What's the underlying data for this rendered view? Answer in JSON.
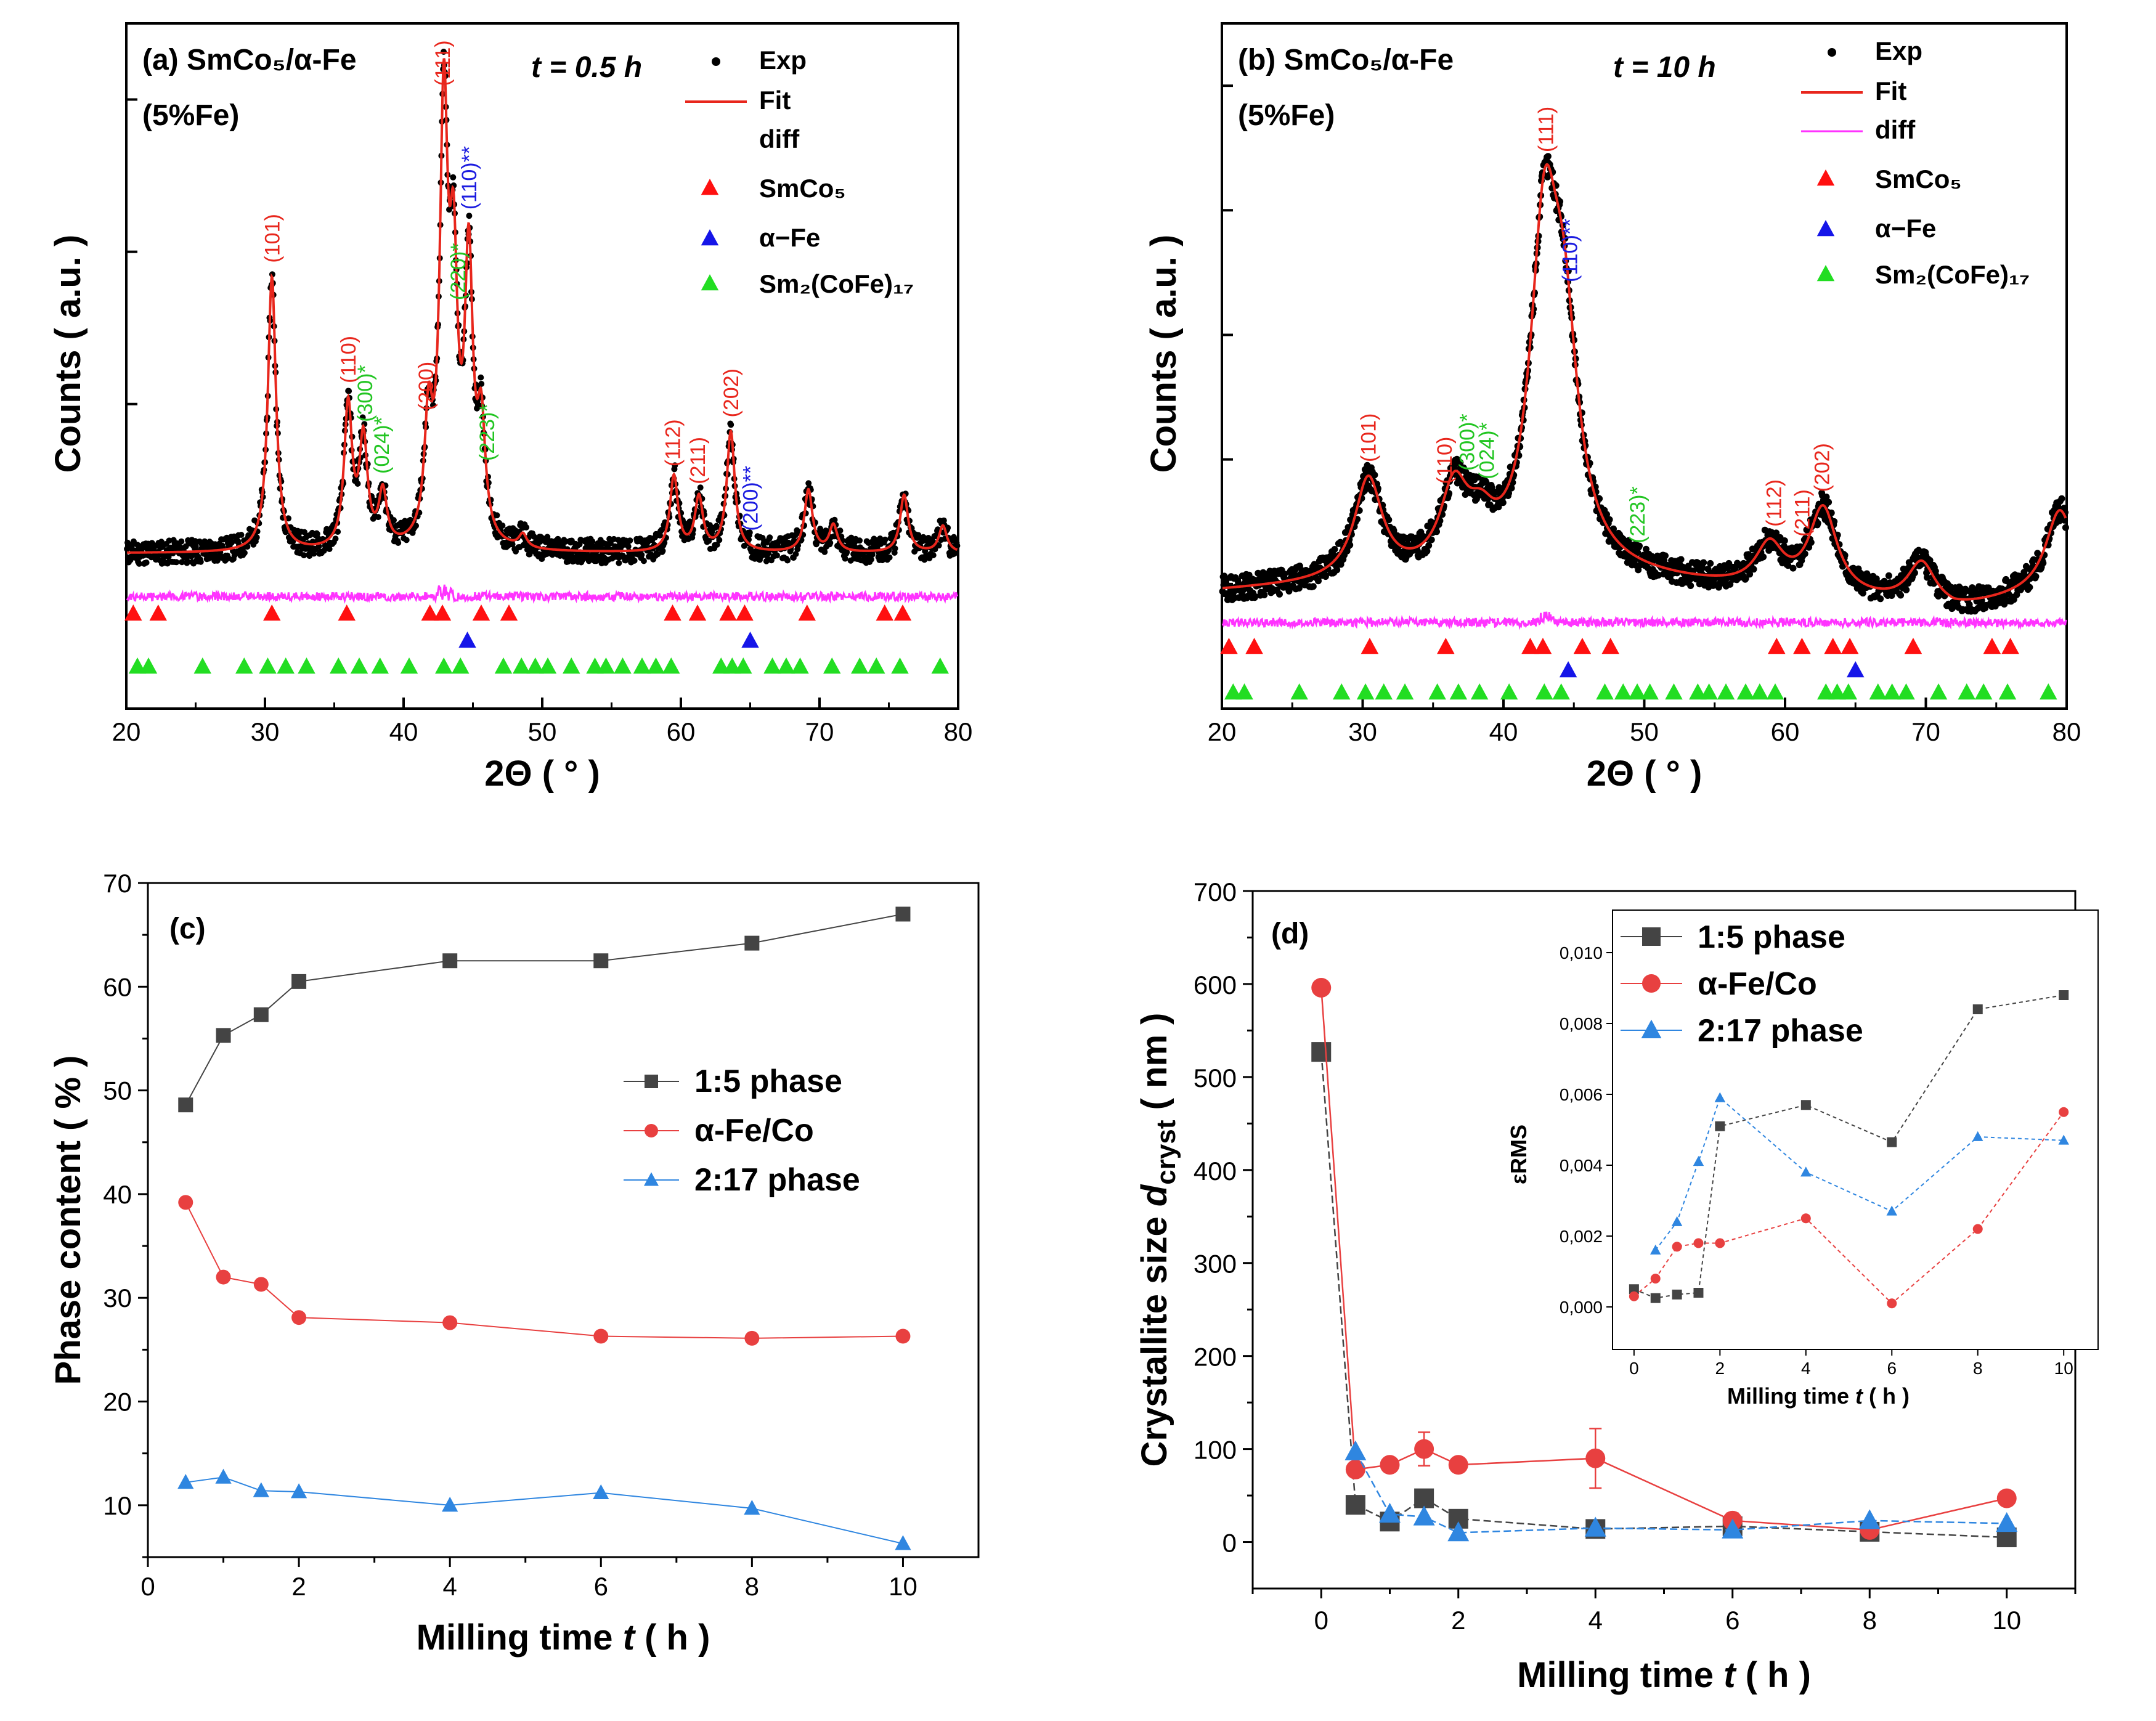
{
  "panels": {
    "a": {
      "label": "(a) SmCo₅/α-Fe",
      "sublabel": "(5%Fe)",
      "time": "t = 0.5 h",
      "xlabel": "2Θ ( ° )",
      "ylabel": "Counts ( a.u. )",
      "xticks": [
        "20",
        "30",
        "40",
        "50",
        "60",
        "70",
        "80"
      ],
      "legend": [
        "Exp",
        "Fit",
        "diff",
        "SmCo₅",
        "α−Fe",
        "Sm₂(CoFe)₁₇"
      ],
      "peaks": [
        {
          "x": 30.5,
          "text": "(101)",
          "color": "#e8261c"
        },
        {
          "x": 36.0,
          "text": "(110)",
          "color": "#e8261c"
        },
        {
          "x": 37.2,
          "text": "(300)*",
          "color": "#22c522"
        },
        {
          "x": 38.4,
          "text": "(024)*",
          "color": "#22c522"
        },
        {
          "x": 41.6,
          "text": "(200)",
          "color": "#e8261c"
        },
        {
          "x": 42.8,
          "text": "(111)",
          "color": "#e8261c"
        },
        {
          "x": 43.9,
          "text": "(220)*",
          "color": "#22c522"
        },
        {
          "x": 44.7,
          "text": "(110)**",
          "color": "#1c1ce0"
        },
        {
          "x": 46.0,
          "text": "(223)*",
          "color": "#22c522"
        },
        {
          "x": 59.4,
          "text": "(112)",
          "color": "#e8261c"
        },
        {
          "x": 61.2,
          "text": "(211)",
          "color": "#e8261c"
        },
        {
          "x": 63.6,
          "text": "(202)",
          "color": "#e8261c"
        },
        {
          "x": 65.0,
          "text": "(200)**",
          "color": "#1c1ce0"
        }
      ]
    },
    "b": {
      "label": "(b) SmCo₅/α-Fe",
      "sublabel": "(5%Fe)",
      "time": "t = 10 h",
      "xlabel": "2Θ ( ° )",
      "ylabel": "Counts ( a.u. )",
      "xticks": [
        "20",
        "30",
        "40",
        "50",
        "60",
        "70",
        "80"
      ],
      "legend": [
        "Exp",
        "Fit",
        "diff",
        "SmCo₅",
        "α−Fe",
        "Sm₂(CoFe)₁₇"
      ],
      "peaks": [
        {
          "x": 30.4,
          "text": "(101)",
          "color": "#e8261c"
        },
        {
          "x": 35.8,
          "text": "(110)",
          "color": "#e8261c"
        },
        {
          "x": 37.4,
          "text": "(300)*",
          "color": "#22c522"
        },
        {
          "x": 38.8,
          "text": "(024)*",
          "color": "#22c522"
        },
        {
          "x": 43.0,
          "text": "(111)",
          "color": "#e8261c"
        },
        {
          "x": 44.7,
          "text": "(110)**",
          "color": "#1c1ce0"
        },
        {
          "x": 49.5,
          "text": "(223)*",
          "color": "#22c522"
        },
        {
          "x": 59.2,
          "text": "(112)",
          "color": "#e8261c"
        },
        {
          "x": 61.2,
          "text": "(211)",
          "color": "#e8261c"
        },
        {
          "x": 62.6,
          "text": "(202)",
          "color": "#e8261c"
        }
      ]
    },
    "c": {
      "label": "(c)",
      "xlabel_prefix": "Milling time ",
      "xlabel_var": "t",
      "xlabel_suffix": " ( h )",
      "ylabel": "Phase content ( % )",
      "xticks": [
        "0",
        "2",
        "4",
        "6",
        "8",
        "10"
      ],
      "yticks": [
        "10",
        "20",
        "30",
        "40",
        "50",
        "60",
        "70"
      ]
    },
    "d": {
      "label": "(d)",
      "xlabel_prefix": "Milling time ",
      "xlabel_var": "t",
      "xlabel_suffix": " ( h )",
      "ylabel_prefix": "Crystallite size ",
      "ylabel_var": "d",
      "ylabel_sub": "cryst",
      "ylabel_suffix": " ( nm )",
      "xticks": [
        "0",
        "2",
        "4",
        "6",
        "8",
        "10"
      ],
      "yticks": [
        "0",
        "100",
        "200",
        "300",
        "400",
        "500",
        "600",
        "700"
      ],
      "inset": {
        "ylabel": "εRMS",
        "xlabel_prefix": "Milling time ",
        "xlabel_var": "t",
        "xlabel_suffix": " ( h )",
        "xticks": [
          "0",
          "2",
          "4",
          "6",
          "8",
          "10"
        ],
        "yticks": [
          "0,000",
          "0,002",
          "0,004",
          "0,006",
          "0,008",
          "0,010"
        ]
      }
    }
  },
  "chart_data": [
    {
      "type": "scatter",
      "title": "(a) SmCo5/α-Fe (5%Fe), t = 0.5 h",
      "xlabel": "2Θ ( ° )",
      "ylabel": "Counts ( a.u. )",
      "xlim": [
        20,
        80
      ],
      "peaks": [
        {
          "x": 30.5,
          "h": 0.62
        },
        {
          "x": 36.0,
          "h": 0.32
        },
        {
          "x": 37.1,
          "h": 0.24
        },
        {
          "x": 38.5,
          "h": 0.12
        },
        {
          "x": 41.8,
          "h": 0.26
        },
        {
          "x": 42.9,
          "h": 0.95
        },
        {
          "x": 43.6,
          "h": 0.55
        },
        {
          "x": 44.7,
          "h": 0.62
        },
        {
          "x": 45.6,
          "h": 0.25
        },
        {
          "x": 48.6,
          "h": 0.03
        },
        {
          "x": 59.5,
          "h": 0.17
        },
        {
          "x": 61.3,
          "h": 0.12
        },
        {
          "x": 63.6,
          "h": 0.27
        },
        {
          "x": 69.2,
          "h": 0.14
        },
        {
          "x": 71.0,
          "h": 0.06
        },
        {
          "x": 76.1,
          "h": 0.13
        },
        {
          "x": 78.9,
          "h": 0.06
        }
      ],
      "width": 0.35,
      "ticks": {
        "SmCo₅": [
          20.5,
          22.3,
          30.5,
          35.9,
          41.9,
          42.8,
          45.6,
          47.6,
          59.4,
          61.2,
          63.4,
          64.6,
          69.1,
          74.7,
          76.0
        ],
        "α−Fe": [
          44.6,
          65.0
        ],
        "Sm₂(CoFe)₁₇": [
          20.8,
          21.6,
          25.5,
          28.5,
          30.2,
          31.5,
          33.0,
          35.3,
          36.8,
          38.3,
          40.4,
          42.9,
          44.1,
          47.2,
          48.5,
          49.5,
          50.4,
          52.1,
          53.8,
          54.6,
          55.8,
          57.2,
          58.2,
          59.3,
          62.9,
          63.7,
          64.5,
          66.6,
          67.6,
          68.6,
          70.9,
          72.9,
          74.1,
          75.8,
          78.7
        ]
      }
    },
    {
      "type": "scatter",
      "title": "(b) SmCo5/α-Fe (5%Fe), t = 10 h",
      "xlabel": "2Θ ( ° )",
      "ylabel": "Counts ( a.u. )",
      "xlim": [
        20,
        80
      ],
      "peaks": [
        {
          "x": 30.4,
          "h": 0.28
        },
        {
          "x": 36.5,
          "h": 0.22
        },
        {
          "x": 38.4,
          "h": 0.1
        },
        {
          "x": 42.9,
          "h": 0.88
        },
        {
          "x": 44.3,
          "h": 0.55
        },
        {
          "x": 58.9,
          "h": 0.12
        },
        {
          "x": 62.7,
          "h": 0.24
        },
        {
          "x": 69.7,
          "h": 0.12
        },
        {
          "x": 79.5,
          "h": 0.22
        }
      ],
      "width": 1.2,
      "ticks": {
        "SmCo₅": [
          20.5,
          22.3,
          30.5,
          35.9,
          41.9,
          42.8,
          45.6,
          47.6,
          59.4,
          61.2,
          63.4,
          64.6,
          69.1,
          74.7,
          76.0
        ],
        "α−Fe": [
          44.6,
          65.0
        ],
        "Sm₂(CoFe)₁₇": [
          20.8,
          21.6,
          25.5,
          28.5,
          30.2,
          31.5,
          33.0,
          35.3,
          36.8,
          38.3,
          40.4,
          42.9,
          44.1,
          47.2,
          48.5,
          49.5,
          50.4,
          52.1,
          53.8,
          54.6,
          55.8,
          57.2,
          58.2,
          59.3,
          62.9,
          63.7,
          64.5,
          66.6,
          67.6,
          68.6,
          70.9,
          72.9,
          74.1,
          75.8,
          78.7
        ]
      }
    },
    {
      "type": "line",
      "title": "(c)",
      "xlabel": "Milling time t ( h )",
      "ylabel": "Phase content ( % )",
      "xlim": [
        0,
        11
      ],
      "ylim": [
        5,
        70
      ],
      "x": [
        0.5,
        1,
        1.5,
        2,
        4,
        6,
        8,
        10
      ],
      "series": [
        {
          "name": "1:5 phase",
          "color": "#444444",
          "marker": "square",
          "values": [
            48.6,
            55.3,
            57.3,
            60.5,
            62.5,
            62.5,
            64.2,
            67.0
          ]
        },
        {
          "name": "α-Fe/Co",
          "color": "#e84040",
          "marker": "circle",
          "values": [
            39.2,
            32.0,
            31.3,
            28.1,
            27.6,
            26.3,
            26.1,
            26.3
          ]
        },
        {
          "name": "2:17 phase",
          "color": "#2f86e0",
          "marker": "triangle",
          "values": [
            12.2,
            12.7,
            11.4,
            11.3,
            10.0,
            11.2,
            9.7,
            6.3
          ]
        }
      ]
    },
    {
      "type": "line",
      "title": "(d)",
      "xlabel": "Milling time t ( h )",
      "ylabel": "Crystallite size dcryst ( nm )",
      "xlim": [
        -1,
        11
      ],
      "ylim": [
        -50,
        700
      ],
      "x": [
        0,
        0.5,
        1,
        1.5,
        2,
        4,
        6,
        8,
        10
      ],
      "series": [
        {
          "name": "1:5 phase",
          "color": "#444444",
          "marker": "square",
          "values": [
            527,
            40,
            22,
            47,
            25,
            14,
            17,
            11,
            5
          ]
        },
        {
          "name": "α-Fe/Co",
          "color": "#e84040",
          "marker": "circle",
          "values": [
            596,
            78,
            83,
            100,
            83,
            90,
            23,
            13,
            47
          ]
        },
        {
          "name": "2:17 phase",
          "color": "#2f86e0",
          "marker": "triangle",
          "values": [
            null,
            97,
            30,
            27,
            10,
            15,
            13,
            23,
            20
          ]
        }
      ],
      "errors": {
        "α-Fe/Co": [
          0,
          0,
          0,
          18,
          0,
          32,
          8,
          0,
          0
        ]
      },
      "inset": {
        "xlabel": "Milling time t ( h )",
        "ylabel": "εRMS",
        "xlim": [
          -0.5,
          10.8
        ],
        "ylim": [
          -0.0012,
          0.0112
        ],
        "x": [
          0,
          0.5,
          1,
          1.5,
          2,
          4,
          6,
          8,
          10
        ],
        "series": [
          {
            "name": "1:5 phase",
            "color": "#444444",
            "values": [
              0.0005,
              0.00025,
              0.00035,
              0.0004,
              0.0051,
              0.0057,
              0.00465,
              0.0084,
              0.0088
            ]
          },
          {
            "name": "α-Fe/Co",
            "color": "#e84040",
            "values": [
              0.0003,
              0.0008,
              0.0017,
              0.0018,
              0.0018,
              0.0025,
              0.0001,
              0.0022,
              0.0055
            ]
          },
          {
            "name": "2:17 phase",
            "color": "#2f86e0",
            "values": [
              null,
              0.0016,
              0.0024,
              0.0041,
              0.0059,
              0.0038,
              0.0027,
              0.0048,
              0.0047
            ]
          }
        ]
      }
    }
  ]
}
